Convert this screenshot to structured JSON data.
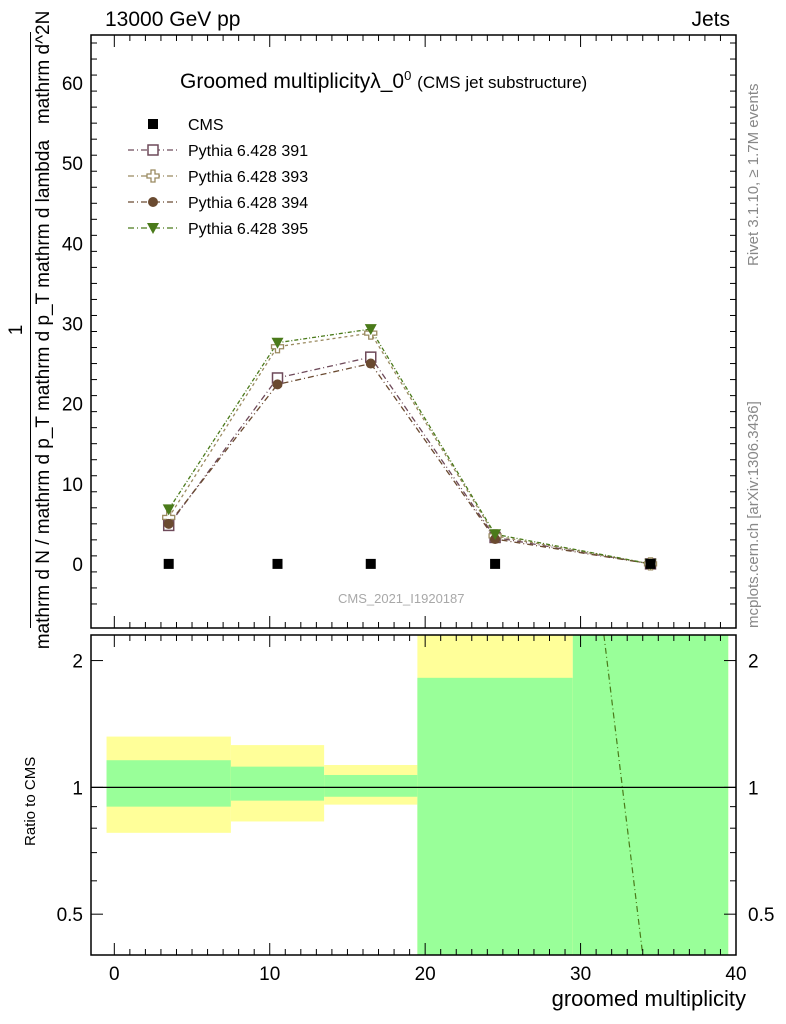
{
  "header": {
    "left": "13000 GeV pp",
    "right": "Jets"
  },
  "side": {
    "rivet": "Rivet 3.1.10, ≥ 1.7M events",
    "mcplots": "mcplots.cern.ch [arXiv:1306.3436]"
  },
  "chart_data": {
    "type": "scatter",
    "title": "Groomed multiplicityλ_0",
    "title_sup": "0",
    "subtitle": "(CMS jet substructure)",
    "analysis_label": "CMS_2021_I1920187",
    "xlabel": "groomed multiplicity",
    "ylabel_num": "1",
    "ylabel_den": "mathrm d N / mathrm d p_T mathrm d p_T mathrm d lambda",
    "ylabel_inner": "mathrm d^2N",
    "ratio_ylabel": "Ratio to CMS",
    "xlim": [
      -1.5,
      40
    ],
    "ylim": [
      -8,
      66
    ],
    "x_ticks": [
      "0",
      "10",
      "20",
      "30",
      "40"
    ],
    "y_ticks": [
      "0",
      "10",
      "20",
      "30",
      "40",
      "50",
      "60"
    ],
    "ratio_ylim": [
      0.4,
      2.3
    ],
    "ratio_log": true,
    "ratio_ticks": [
      "0.5",
      "1",
      "2"
    ],
    "legend_position": "top-left",
    "data": {
      "name": "CMS",
      "x": [
        3.5,
        10.5,
        16.5,
        24.5,
        34.5
      ],
      "y": [
        0,
        0,
        0,
        0,
        0
      ]
    },
    "series": [
      {
        "name": "Pythia 6.428 391",
        "color": "#6e4a5a",
        "marker": "open-square",
        "x": [
          3.5,
          10.5,
          16.5,
          24.5,
          34.5
        ],
        "y": [
          4.8,
          23.2,
          25.8,
          3.3,
          0
        ]
      },
      {
        "name": "Pythia 6.428 393",
        "color": "#9a8a60",
        "marker": "open-cross",
        "x": [
          3.5,
          10.5,
          16.5,
          24.5,
          34.5
        ],
        "y": [
          5.8,
          27.1,
          28.8,
          3.5,
          0
        ]
      },
      {
        "name": "Pythia 6.428 394",
        "color": "#6a4a30",
        "marker": "filled-circle",
        "x": [
          3.5,
          10.5,
          16.5,
          24.5,
          34.5
        ],
        "y": [
          5.0,
          22.4,
          25.0,
          3.1,
          0
        ]
      },
      {
        "name": "Pythia 6.428 395",
        "color": "#4a7a1a",
        "marker": "filled-triangle-down",
        "x": [
          3.5,
          10.5,
          16.5,
          24.5,
          34.5
        ],
        "y": [
          6.8,
          27.6,
          29.3,
          3.7,
          0
        ]
      }
    ],
    "ratio_bands": [
      {
        "x": [
          -0.5,
          7.5
        ],
        "green": [
          0.9,
          1.16
        ],
        "yellow": [
          0.78,
          1.32
        ]
      },
      {
        "x": [
          7.5,
          13.5
        ],
        "green": [
          0.93,
          1.12
        ],
        "yellow": [
          0.83,
          1.26
        ]
      },
      {
        "x": [
          13.5,
          19.5
        ],
        "green": [
          0.95,
          1.07
        ],
        "yellow": [
          0.91,
          1.13
        ]
      },
      {
        "x": [
          19.5,
          29.5
        ],
        "green": [
          0.4,
          1.82
        ],
        "yellow": [
          0.4,
          2.3
        ]
      },
      {
        "x": [
          29.5,
          39.5
        ],
        "green": [
          0.4,
          2.3
        ],
        "yellow": [
          0.4,
          2.3
        ]
      }
    ],
    "ratio_line": {
      "x": [
        31.5,
        34.0
      ],
      "y": [
        2.3,
        0.4
      ]
    },
    "colors": {
      "band_green": "#99ff99",
      "band_yellow": "#ffff99"
    }
  }
}
